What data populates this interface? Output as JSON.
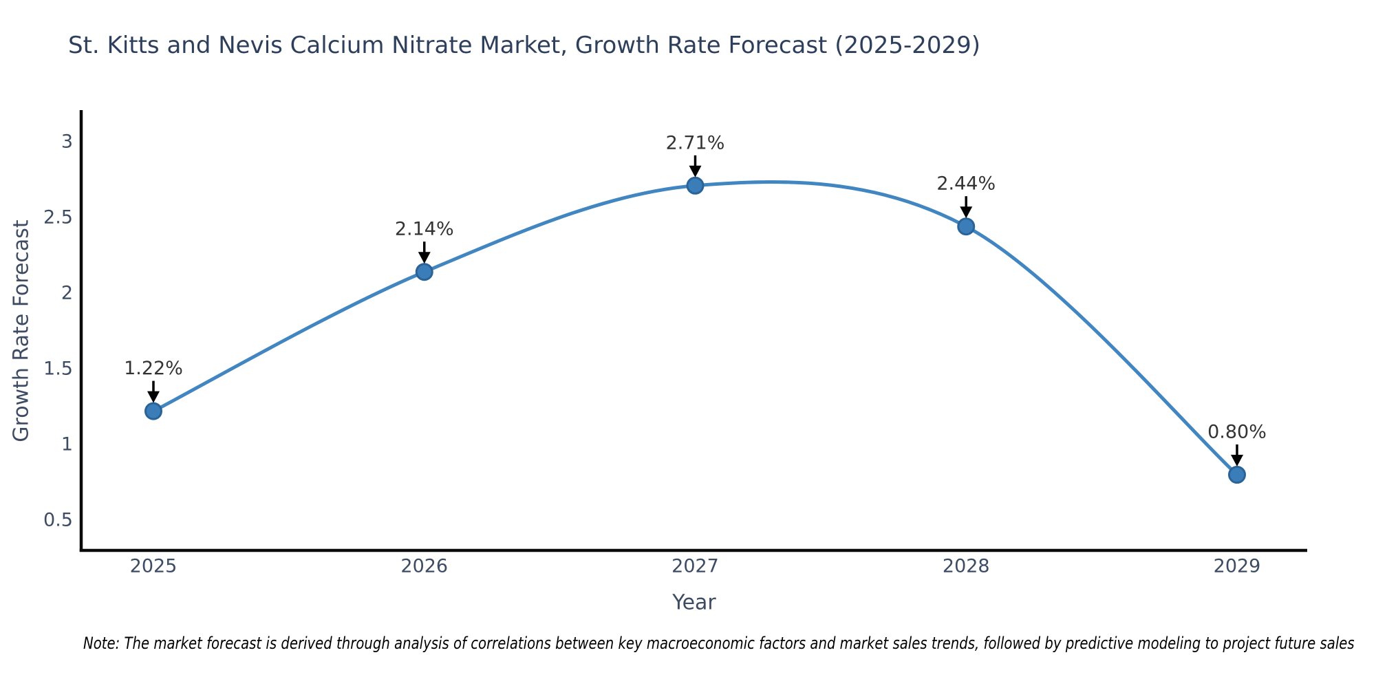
{
  "chart_data": {
    "type": "line",
    "title": "St. Kitts and Nevis Calcium Nitrate Market, Growth Rate Forecast (2025-2029)",
    "xlabel": "Year",
    "ylabel": "Growth Rate Forecast",
    "categories": [
      "2025",
      "2026",
      "2027",
      "2028",
      "2029"
    ],
    "series": [
      {
        "name": "Growth Rate Forecast",
        "values": [
          1.22,
          2.14,
          2.71,
          2.44,
          0.8
        ]
      }
    ],
    "point_labels": [
      "1.22%",
      "2.14%",
      "2.71%",
      "2.44%",
      "0.80%"
    ],
    "yticks": [
      0.5,
      1,
      1.5,
      2,
      2.5,
      3
    ],
    "ylim": [
      0.3,
      3.2
    ],
    "grid": false,
    "legend_position": "none",
    "line_shape": "spline",
    "colors": {
      "line": "#4186c0",
      "marker_fill": "#3b7db9",
      "marker_edge": "#2a6397",
      "axis": "#0a0a0a",
      "arrow": "#000000",
      "title_text": "#2e3f5c",
      "tick_text": "#3d4c63",
      "annotation_text": "#333333",
      "note_text": "#000000"
    },
    "note": "Note: The market forecast is derived through analysis of correlations between key macroeconomic factors and market sales trends, followed by predictive modeling to project future sales"
  }
}
